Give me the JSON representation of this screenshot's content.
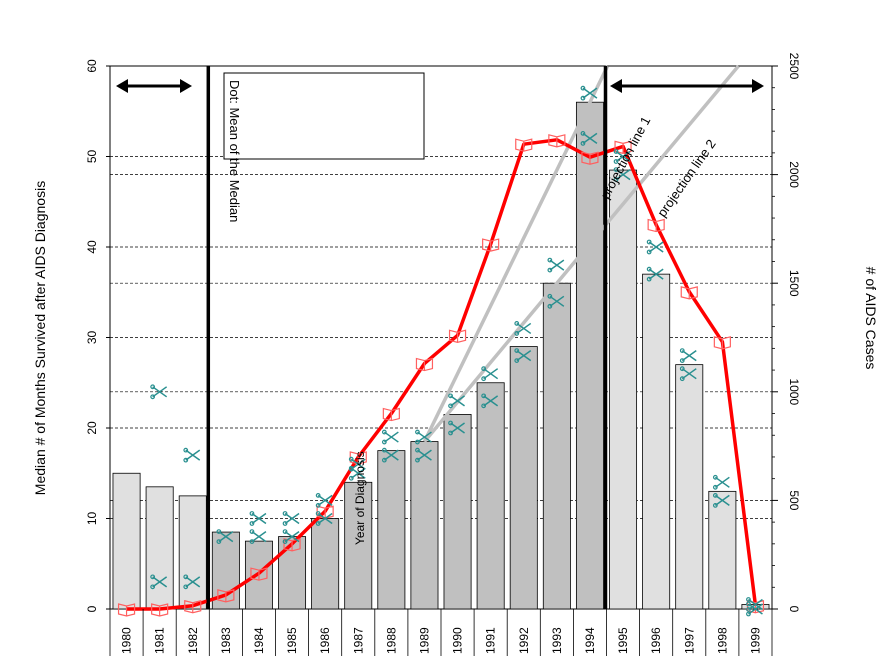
{
  "chart_data": {
    "type": "bar",
    "categories": [
      "1980",
      "1981",
      "1982",
      "1983",
      "1984",
      "1985",
      "1986",
      "1987",
      "1988",
      "1989",
      "1990",
      "1991",
      "1992",
      "1993",
      "1994",
      "1995",
      "1996",
      "1997",
      "1998",
      "1999"
    ],
    "xlabel": "Year of Diagnosis",
    "ylabel_left": "Median # of Months Survived after AIDS Diagnosis",
    "ylabel_right": "# of AIDS Cases",
    "ylim_left": [
      0,
      60
    ],
    "ylim_right": [
      0,
      2500
    ],
    "yticks_left": [
      "0",
      "10",
      "20",
      "30",
      "40",
      "50",
      "60"
    ],
    "yticks_right": [
      "0",
      "500",
      "1000",
      "1500",
      "2000",
      "2500"
    ],
    "series": [
      {
        "kind": "bar",
        "axis": "left",
        "values": [
          15,
          13.5,
          12.5,
          8.5,
          7.5,
          8,
          10,
          14,
          17.5,
          18.5,
          21.5,
          25,
          29,
          36,
          56,
          48.5,
          37,
          27,
          13,
          0.5
        ]
      },
      {
        "kind": "line",
        "axis": "right",
        "color": "#ff0000",
        "values": [
          0,
          0,
          15,
          65,
          165,
          300,
          450,
          700,
          900,
          1130,
          1260,
          1680,
          2140,
          2160,
          2080,
          2130,
          1770,
          1460,
          1230,
          15
        ]
      },
      {
        "kind": "markers",
        "axis": "left",
        "marker": "scissors",
        "color": "#2a9090",
        "values": [
          null,
          3,
          3,
          8,
          8,
          8,
          10,
          16,
          19,
          19,
          20,
          23,
          31,
          38,
          57,
          50,
          40,
          28,
          14,
          0
        ]
      },
      {
        "kind": "markers",
        "axis": "left",
        "marker": "scissors",
        "color": "#2a9090",
        "values": [
          null,
          24,
          17,
          null,
          10,
          10,
          12,
          15,
          17,
          17,
          23,
          26,
          28,
          34,
          52,
          48,
          37,
          26,
          12,
          0.5
        ]
      }
    ],
    "projection_labels": [
      "projection line 1",
      "projection line 2"
    ],
    "legend_text": "Dot: Mean of the Median",
    "vline_years": [
      "1983",
      "1995"
    ],
    "grid": true,
    "bar_colors": {
      "light": "#e0e0e0",
      "dark": "#c0c0c0",
      "line": "#ff0000",
      "projection": "#c0c0c0",
      "scissors": "#2a9090",
      "book": "#ff6060"
    }
  }
}
